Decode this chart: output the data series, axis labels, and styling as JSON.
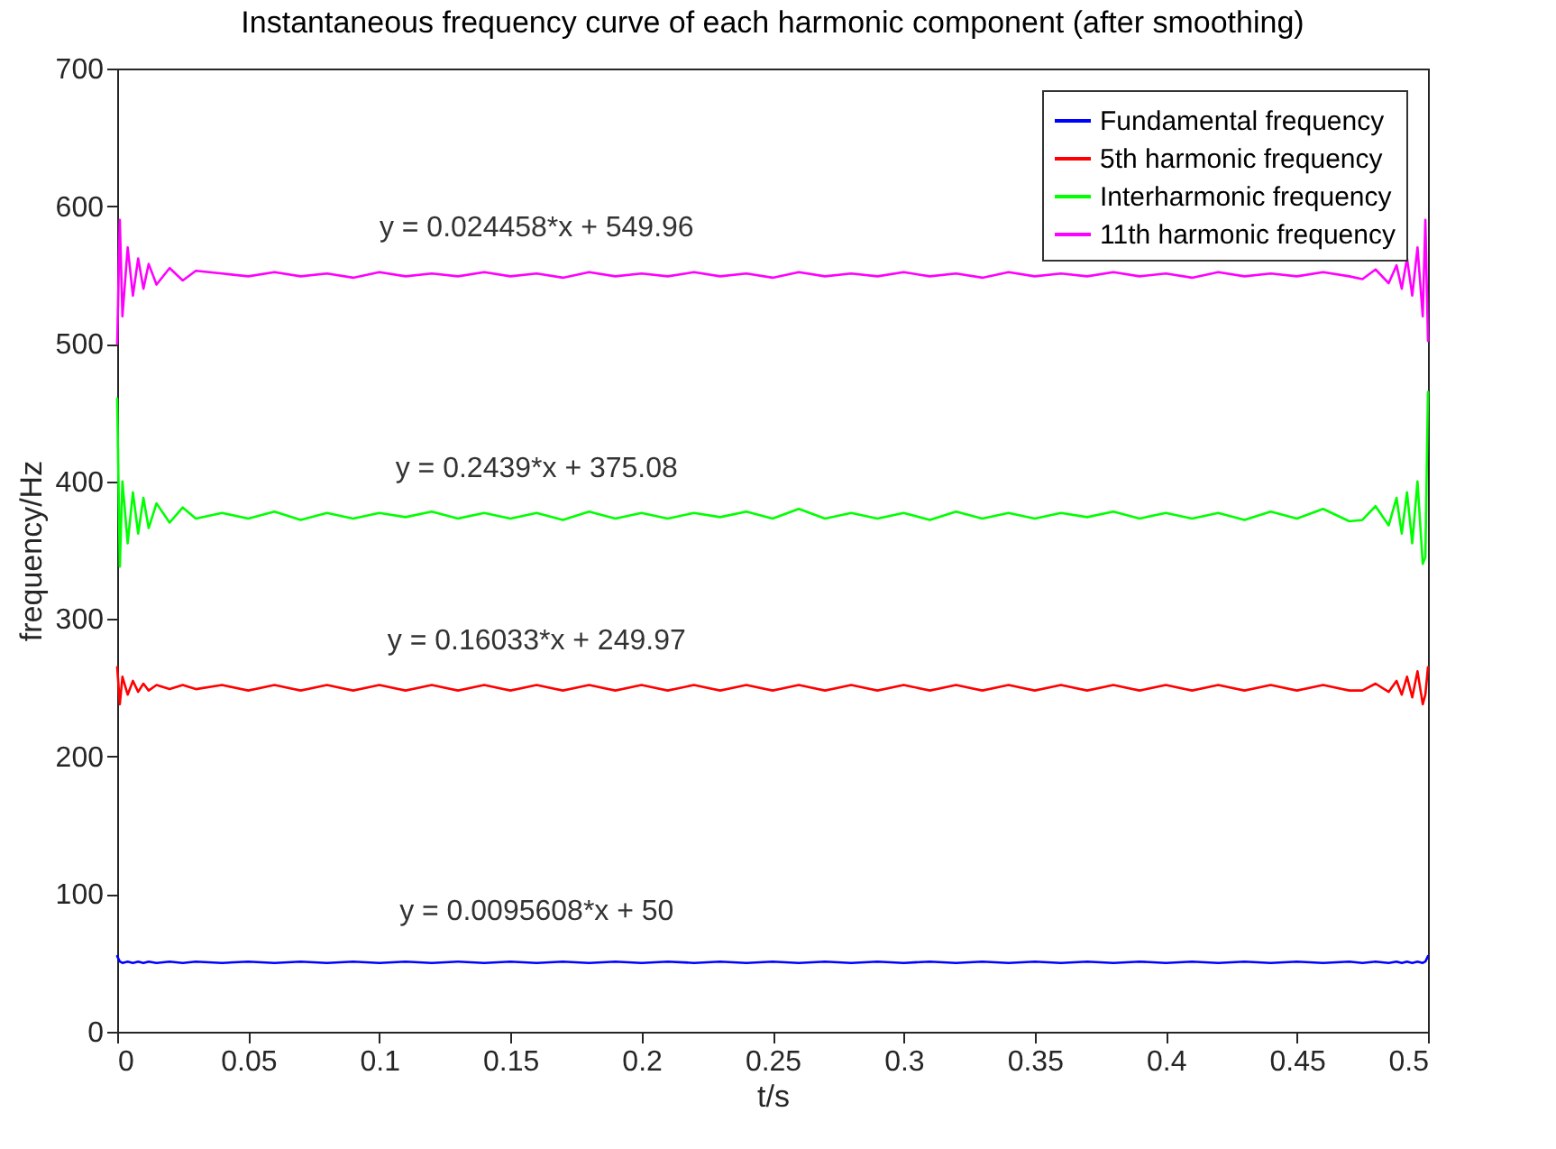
{
  "chart_data": {
    "type": "line",
    "title": "Instantaneous frequency curve of each harmonic component (after smoothing)",
    "xlabel": "t/s",
    "ylabel": "frequency/Hz",
    "x": [
      0,
      0.001,
      0.002,
      0.004,
      0.006,
      0.008,
      0.01,
      0.012,
      0.015,
      0.02,
      0.025,
      0.03,
      0.04,
      0.05,
      0.06,
      0.07,
      0.08,
      0.09,
      0.1,
      0.11,
      0.12,
      0.13,
      0.14,
      0.15,
      0.16,
      0.17,
      0.18,
      0.19,
      0.2,
      0.21,
      0.22,
      0.23,
      0.24,
      0.25,
      0.26,
      0.27,
      0.28,
      0.29,
      0.3,
      0.31,
      0.32,
      0.33,
      0.34,
      0.35,
      0.36,
      0.37,
      0.38,
      0.39,
      0.4,
      0.41,
      0.42,
      0.43,
      0.44,
      0.45,
      0.46,
      0.47,
      0.475,
      0.48,
      0.485,
      0.488,
      0.49,
      0.492,
      0.494,
      0.496,
      0.498,
      0.499,
      0.5
    ],
    "series": [
      {
        "name": "Fundamental frequency",
        "color": "#0000ff",
        "values": [
          55,
          51,
          50,
          51,
          50,
          51,
          50,
          51,
          50,
          51,
          50,
          51,
          50,
          51,
          50,
          51,
          50,
          51,
          50,
          51,
          50,
          51,
          50,
          51,
          50,
          51,
          50,
          51,
          50,
          51,
          50,
          51,
          50,
          51,
          50,
          51,
          50,
          51,
          50,
          51,
          50,
          51,
          50,
          51,
          50,
          51,
          50,
          51,
          50,
          51,
          50,
          51,
          50,
          51,
          50,
          51,
          50,
          51,
          50,
          51,
          50,
          51,
          50,
          51,
          50,
          51,
          55
        ]
      },
      {
        "name": "5th harmonic frequency",
        "color": "#ff0000",
        "values": [
          265,
          238,
          258,
          245,
          255,
          247,
          253,
          248,
          252,
          249,
          252,
          249,
          252,
          248,
          252,
          248,
          252,
          248,
          252,
          248,
          252,
          248,
          252,
          248,
          252,
          248,
          252,
          248,
          252,
          248,
          252,
          248,
          252,
          248,
          252,
          248,
          252,
          248,
          252,
          248,
          252,
          248,
          252,
          248,
          252,
          248,
          252,
          248,
          252,
          248,
          252,
          248,
          252,
          248,
          252,
          248,
          248,
          253,
          247,
          255,
          245,
          258,
          243,
          262,
          238,
          245,
          265
        ]
      },
      {
        "name": "Interharmonic frequency",
        "color": "#00ff00",
        "values": [
          460,
          338,
          400,
          355,
          392,
          362,
          388,
          366,
          384,
          370,
          381,
          373,
          377,
          373,
          378,
          372,
          377,
          373,
          377,
          374,
          378,
          373,
          377,
          373,
          377,
          372,
          378,
          373,
          377,
          373,
          377,
          374,
          378,
          373,
          380,
          373,
          377,
          373,
          377,
          372,
          378,
          373,
          377,
          373,
          377,
          374,
          378,
          373,
          377,
          373,
          377,
          372,
          378,
          373,
          380,
          371,
          372,
          382,
          368,
          388,
          362,
          392,
          355,
          400,
          340,
          345,
          465
        ]
      },
      {
        "name": "11th harmonic frequency",
        "color": "#ff00ff",
        "values": [
          500,
          590,
          520,
          570,
          535,
          562,
          540,
          558,
          543,
          555,
          546,
          553,
          551,
          549,
          552,
          549,
          551,
          548,
          552,
          549,
          551,
          549,
          552,
          549,
          551,
          548,
          552,
          549,
          551,
          549,
          552,
          549,
          551,
          548,
          552,
          549,
          551,
          549,
          552,
          549,
          551,
          548,
          552,
          549,
          551,
          549,
          552,
          549,
          551,
          548,
          552,
          549,
          551,
          549,
          552,
          549,
          547,
          554,
          544,
          557,
          540,
          562,
          535,
          570,
          520,
          590,
          502
        ]
      }
    ],
    "xlim": [
      0,
      0.5
    ],
    "xticks": [
      0,
      0.05,
      0.1,
      0.15,
      0.2,
      0.25,
      0.3,
      0.35,
      0.4,
      0.45,
      0.5
    ],
    "ylim": [
      0,
      700
    ],
    "yticks": [
      0,
      100,
      200,
      300,
      400,
      500,
      600,
      700
    ],
    "annotations": [
      "y = 0.0095608*x + 50",
      "y = 0.16033*x + 249.97",
      "y = 0.2439*x + 375.08",
      "y = 0.024458*x + 549.96"
    ],
    "legend": "top right",
    "grid": false,
    "line_style": "solid",
    "marker": "none"
  }
}
